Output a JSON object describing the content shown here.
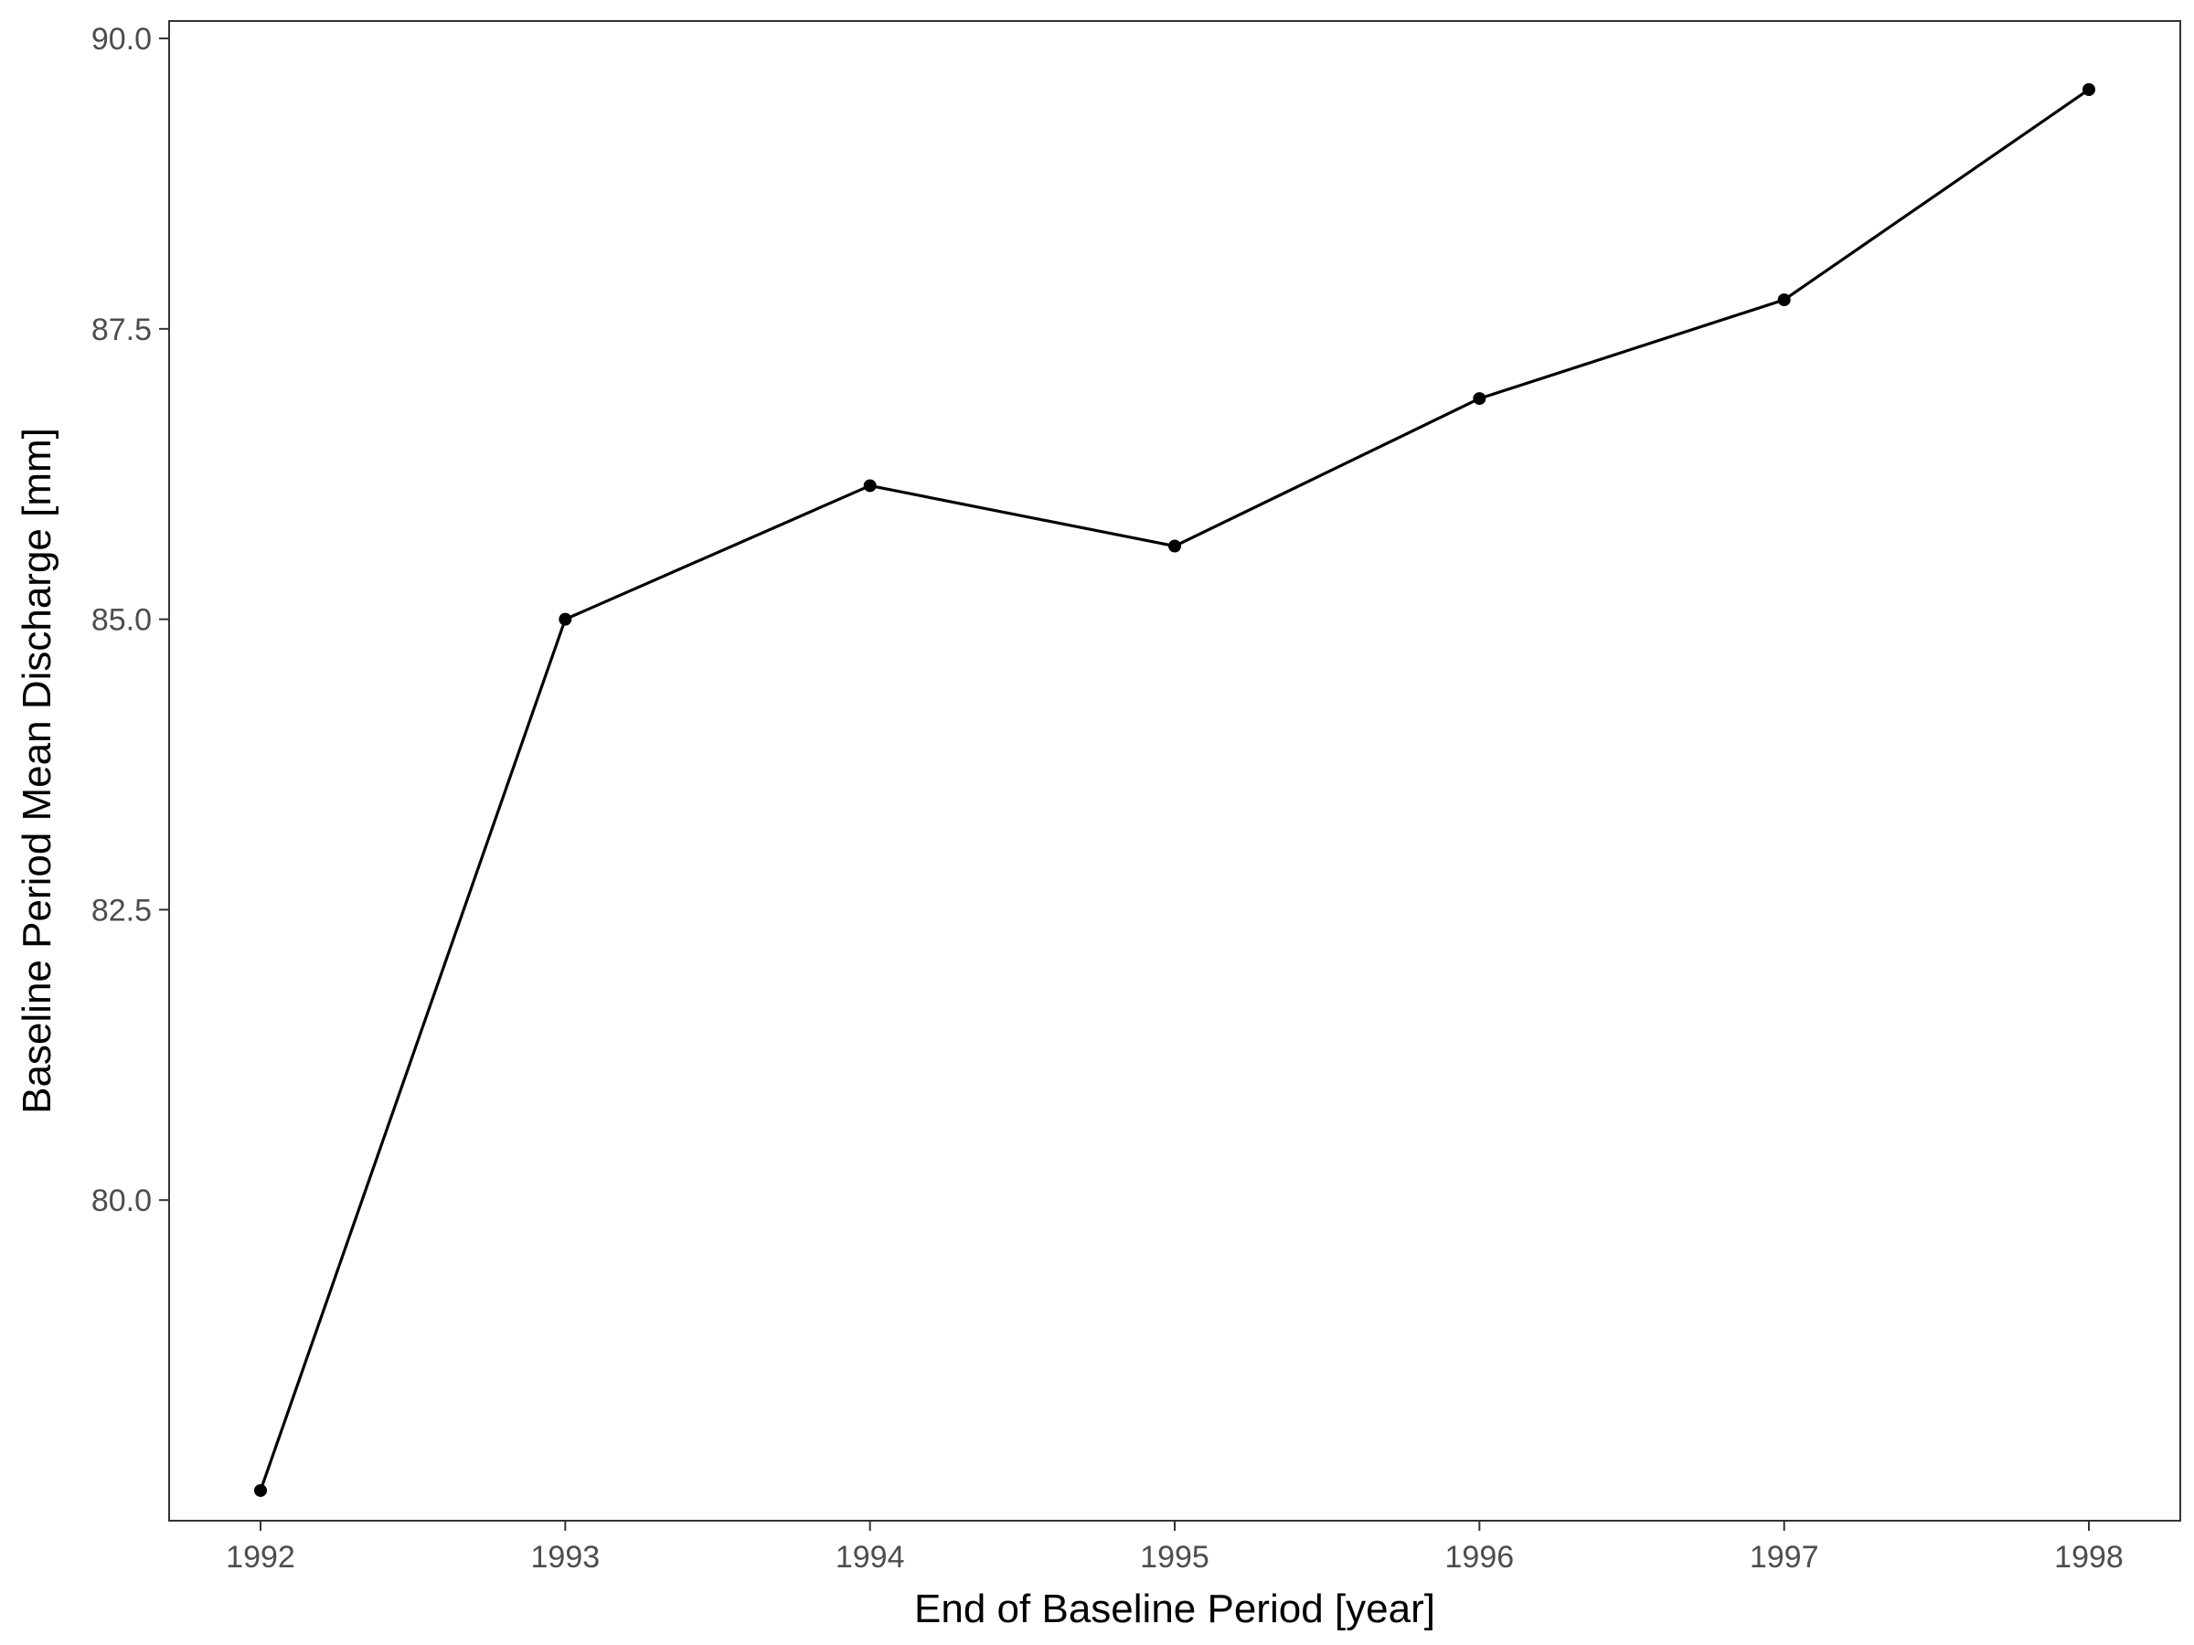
{
  "chart_data": {
    "type": "line",
    "title": "",
    "xlabel": "End of Baseline Period [year]",
    "ylabel": "Baseline Period Mean Discharge [mm]",
    "x": [
      1992,
      1993,
      1994,
      1995,
      1996,
      1997,
      1998
    ],
    "series": [
      {
        "values": [
          77.5,
          85.0,
          86.15,
          85.63,
          86.9,
          87.75,
          89.56
        ]
      }
    ],
    "xlim": [
      1991.7,
      1998.3
    ],
    "ylim": [
      77.24,
      90.15
    ],
    "xticks": [
      1992,
      1993,
      1994,
      1995,
      1996,
      1997,
      1998
    ],
    "xtick_labels": [
      "1992",
      "1993",
      "1994",
      "1995",
      "1996",
      "1997",
      "1998"
    ],
    "yticks": [
      80.0,
      82.5,
      85.0,
      87.5,
      90.0
    ],
    "ytick_labels": [
      "80.0",
      "82.5",
      "85.0",
      "87.5",
      "90.0"
    ],
    "grid": false,
    "legend": "none",
    "colors": {
      "line": "#000000",
      "points": "#000000",
      "panel_border": "#333333",
      "tick_text": "#4d4d4d"
    }
  }
}
